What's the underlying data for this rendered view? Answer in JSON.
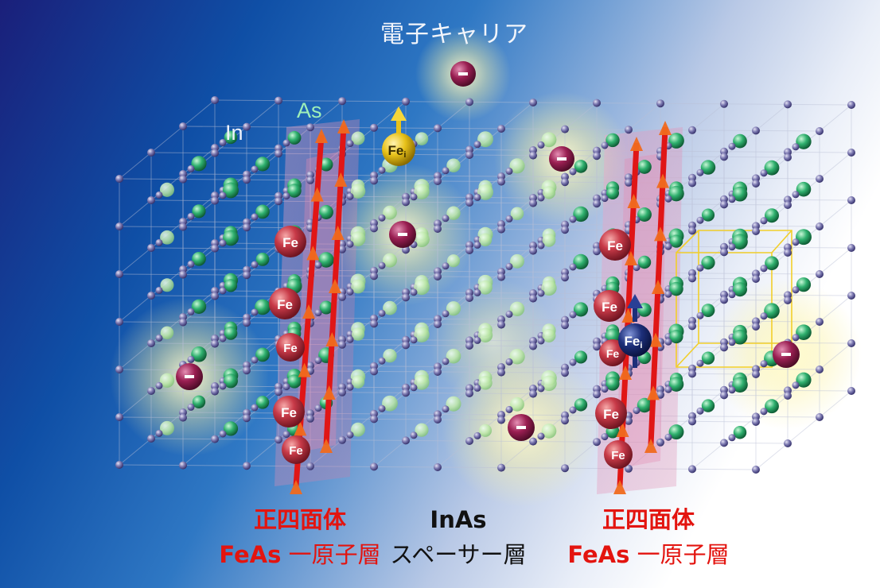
{
  "title": "電子キャリア",
  "atom_labels": {
    "indium": "In",
    "arsenic": "As"
  },
  "atom_symbols": {
    "iron": "Fe",
    "interstitial_iron": "Fei",
    "electron": "-"
  },
  "captions": {
    "left": {
      "line1": "正四面体",
      "line2_bold": "FeAs",
      "line2_rest": " 一原子層"
    },
    "middle": {
      "line1": "InAs",
      "line2": "スペーサー層"
    },
    "right": {
      "line1": "正四面体",
      "line2_bold": "FeAs",
      "line2_rest": " 一原子層"
    }
  },
  "colors": {
    "iron": "#c83a48",
    "interstitial_up": "#e8c21a",
    "interstitial_down": "#1d2f7a",
    "electron": "#9a1f52",
    "arsenic": "#2fb06e",
    "indium": "#7b78b0",
    "spin_arrow": "#e01616",
    "caption_red": "#e3140f"
  }
}
